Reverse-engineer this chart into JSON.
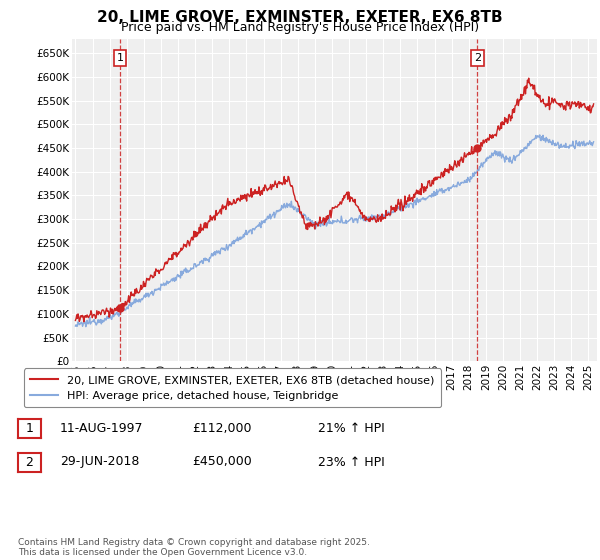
{
  "title": "20, LIME GROVE, EXMINSTER, EXETER, EX6 8TB",
  "subtitle": "Price paid vs. HM Land Registry's House Price Index (HPI)",
  "ylim": [
    0,
    680000
  ],
  "xlim_start": 1994.8,
  "xlim_end": 2025.5,
  "yticks": [
    0,
    50000,
    100000,
    150000,
    200000,
    250000,
    300000,
    350000,
    400000,
    450000,
    500000,
    550000,
    600000,
    650000
  ],
  "ytick_labels": [
    "£0",
    "£50K",
    "£100K",
    "£150K",
    "£200K",
    "£250K",
    "£300K",
    "£350K",
    "£400K",
    "£450K",
    "£500K",
    "£550K",
    "£600K",
    "£650K"
  ],
  "xtick_years": [
    1995,
    1996,
    1997,
    1998,
    1999,
    2000,
    2001,
    2002,
    2003,
    2004,
    2005,
    2006,
    2007,
    2008,
    2009,
    2010,
    2011,
    2012,
    2013,
    2014,
    2015,
    2016,
    2017,
    2018,
    2019,
    2020,
    2021,
    2022,
    2023,
    2024,
    2025
  ],
  "background_color": "#ffffff",
  "plot_bg_color": "#efefef",
  "grid_color": "#ffffff",
  "red_line_color": "#cc2222",
  "blue_line_color": "#88aadd",
  "marker1_x": 1997.6,
  "marker1_y": 112000,
  "marker2_x": 2018.5,
  "marker2_y": 450000,
  "vline1_x": 1997.6,
  "vline2_x": 2018.5,
  "annotation1_label": "1",
  "annotation2_label": "2",
  "legend_line1": "20, LIME GROVE, EXMINSTER, EXETER, EX6 8TB (detached house)",
  "legend_line2": "HPI: Average price, detached house, Teignbridge",
  "table_row1": [
    "1",
    "11-AUG-1997",
    "£112,000",
    "21% ↑ HPI"
  ],
  "table_row2": [
    "2",
    "29-JUN-2018",
    "£450,000",
    "23% ↑ HPI"
  ],
  "footnote": "Contains HM Land Registry data © Crown copyright and database right 2025.\nThis data is licensed under the Open Government Licence v3.0.",
  "title_fontsize": 11,
  "subtitle_fontsize": 9,
  "tick_fontsize": 7.5,
  "legend_fontsize": 8,
  "table_fontsize": 9,
  "footnote_fontsize": 6.5
}
